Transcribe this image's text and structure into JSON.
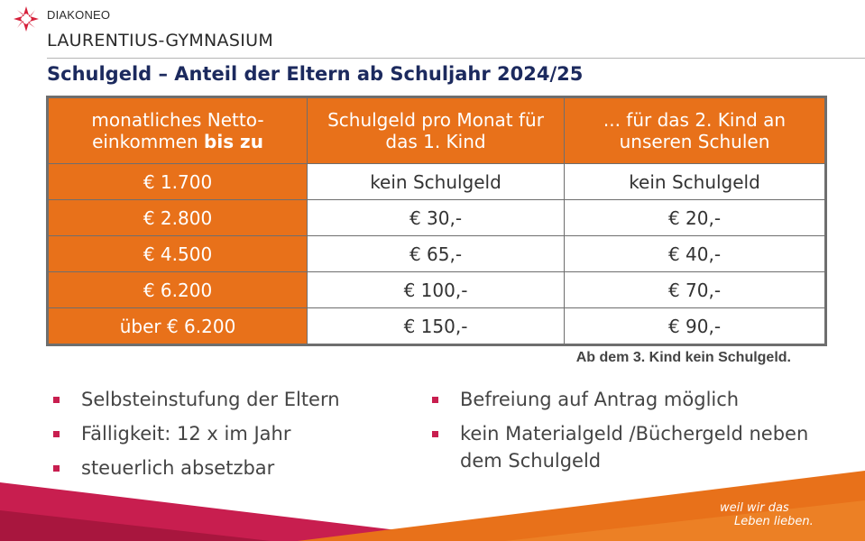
{
  "header": {
    "brand": "DIAKONEO",
    "school": "LAURENTIUS-GYMNASIUM"
  },
  "title": "Schulgeld – Anteil der Eltern ab Schuljahr 2024/25",
  "table": {
    "headers": {
      "col1_line1": "monatliches Netto-",
      "col1_line2_a": "einkommen ",
      "col1_line2_b": "bis zu",
      "col2": "Schulgeld pro Monat für das 1. Kind",
      "col3": "... für das 2. Kind an unseren Schulen"
    },
    "rows": [
      {
        "income": "€ 1.700",
        "first": "kein Schulgeld",
        "second": "kein Schulgeld"
      },
      {
        "income": "€ 2.800",
        "first": "€ 30,-",
        "second": "€ 20,-"
      },
      {
        "income": "€ 4.500",
        "first": "€ 65,-",
        "second": "€ 40,-"
      },
      {
        "income": "€ 6.200",
        "first": "€ 100,-",
        "second": "€ 70,-"
      },
      {
        "income": "über € 6.200",
        "first": "€ 150,-",
        "second": "€ 90,-"
      }
    ]
  },
  "note": "Ab dem 3. Kind kein Schulgeld.",
  "bullets_left": [
    "Selbsteinstufung der Eltern",
    "Fälligkeit: 12 x im Jahr",
    "steuerlich absetzbar"
  ],
  "bullets_right": [
    "Befreiung auf Antrag möglich",
    "kein Materialgeld /Büchergeld neben dem Schulgeld"
  ],
  "slogan": {
    "line1": "weil wir das",
    "line2": "Leben lieben."
  },
  "colors": {
    "orange": "#e8711a",
    "crimson": "#c81e4f",
    "navy": "#1c2a5e"
  }
}
